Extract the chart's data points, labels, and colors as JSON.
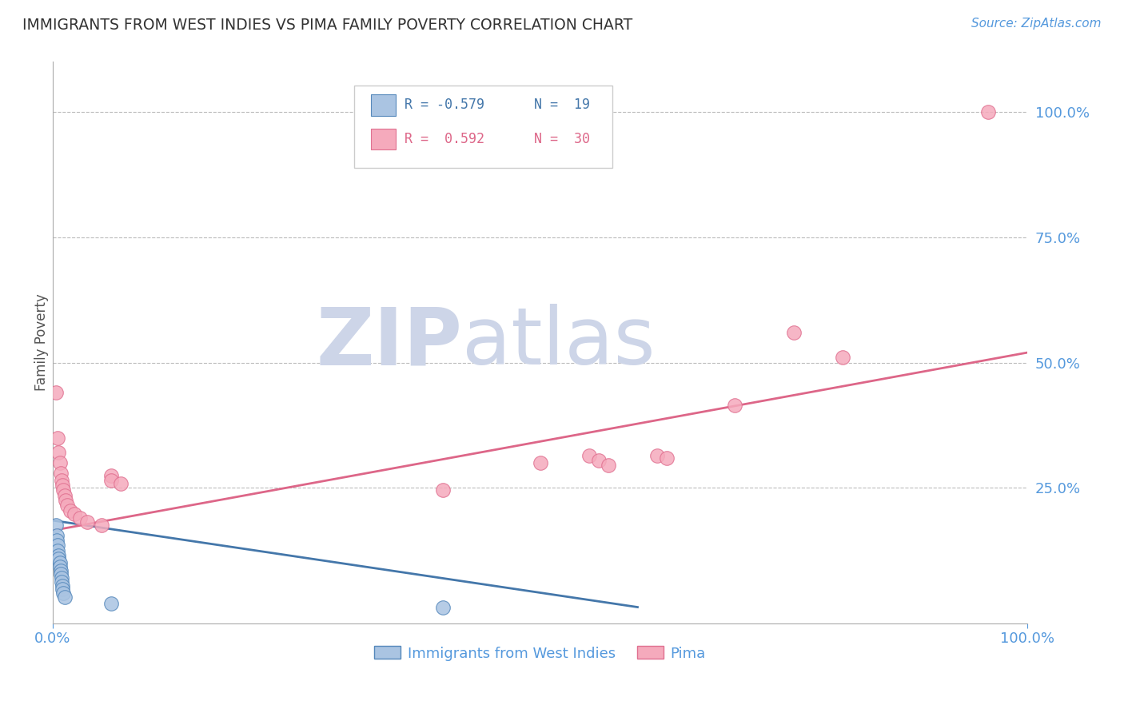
{
  "title": "IMMIGRANTS FROM WEST INDIES VS PIMA FAMILY POVERTY CORRELATION CHART",
  "source_text": "Source: ZipAtlas.com",
  "ylabel": "Family Poverty",
  "x_tick_labels": [
    "0.0%",
    "100.0%"
  ],
  "y_tick_labels": [
    "25.0%",
    "50.0%",
    "75.0%",
    "100.0%"
  ],
  "y_tick_positions": [
    0.25,
    0.5,
    0.75,
    1.0
  ],
  "xlim": [
    0.0,
    1.0
  ],
  "ylim": [
    -0.02,
    1.1
  ],
  "legend_r1": "R = -0.579",
  "legend_n1": "N =  19",
  "legend_r2": "R =  0.592",
  "legend_n2": "N =  30",
  "legend_label1": "Immigrants from West Indies",
  "legend_label2": "Pima",
  "blue_color": "#aac4e2",
  "pink_color": "#f5aabc",
  "blue_edge_color": "#5588bb",
  "pink_edge_color": "#e07090",
  "blue_line_color": "#4477aa",
  "pink_line_color": "#dd6688",
  "axis_label_color": "#5599dd",
  "title_color": "#333333",
  "grid_color": "#bbbbbb",
  "blue_scatter": [
    [
      0.003,
      0.175
    ],
    [
      0.004,
      0.155
    ],
    [
      0.004,
      0.145
    ],
    [
      0.005,
      0.135
    ],
    [
      0.005,
      0.125
    ],
    [
      0.006,
      0.115
    ],
    [
      0.006,
      0.108
    ],
    [
      0.007,
      0.1
    ],
    [
      0.007,
      0.092
    ],
    [
      0.008,
      0.085
    ],
    [
      0.008,
      0.078
    ],
    [
      0.009,
      0.07
    ],
    [
      0.009,
      0.062
    ],
    [
      0.01,
      0.055
    ],
    [
      0.01,
      0.048
    ],
    [
      0.011,
      0.04
    ],
    [
      0.012,
      0.032
    ],
    [
      0.06,
      0.02
    ],
    [
      0.4,
      0.012
    ]
  ],
  "pink_scatter": [
    [
      0.003,
      0.44
    ],
    [
      0.005,
      0.35
    ],
    [
      0.006,
      0.32
    ],
    [
      0.007,
      0.3
    ],
    [
      0.008,
      0.28
    ],
    [
      0.009,
      0.265
    ],
    [
      0.01,
      0.255
    ],
    [
      0.011,
      0.245
    ],
    [
      0.012,
      0.235
    ],
    [
      0.013,
      0.225
    ],
    [
      0.015,
      0.215
    ],
    [
      0.018,
      0.205
    ],
    [
      0.022,
      0.198
    ],
    [
      0.028,
      0.19
    ],
    [
      0.035,
      0.182
    ],
    [
      0.05,
      0.175
    ],
    [
      0.06,
      0.275
    ],
    [
      0.06,
      0.265
    ],
    [
      0.07,
      0.258
    ],
    [
      0.4,
      0.245
    ],
    [
      0.5,
      0.3
    ],
    [
      0.55,
      0.315
    ],
    [
      0.56,
      0.305
    ],
    [
      0.57,
      0.295
    ],
    [
      0.62,
      0.315
    ],
    [
      0.63,
      0.31
    ],
    [
      0.7,
      0.415
    ],
    [
      0.76,
      0.56
    ],
    [
      0.81,
      0.51
    ],
    [
      0.96,
      1.0
    ]
  ],
  "blue_line": [
    [
      0.0,
      0.185
    ],
    [
      0.6,
      0.012
    ]
  ],
  "pink_line": [
    [
      0.0,
      0.165
    ],
    [
      1.0,
      0.52
    ]
  ]
}
